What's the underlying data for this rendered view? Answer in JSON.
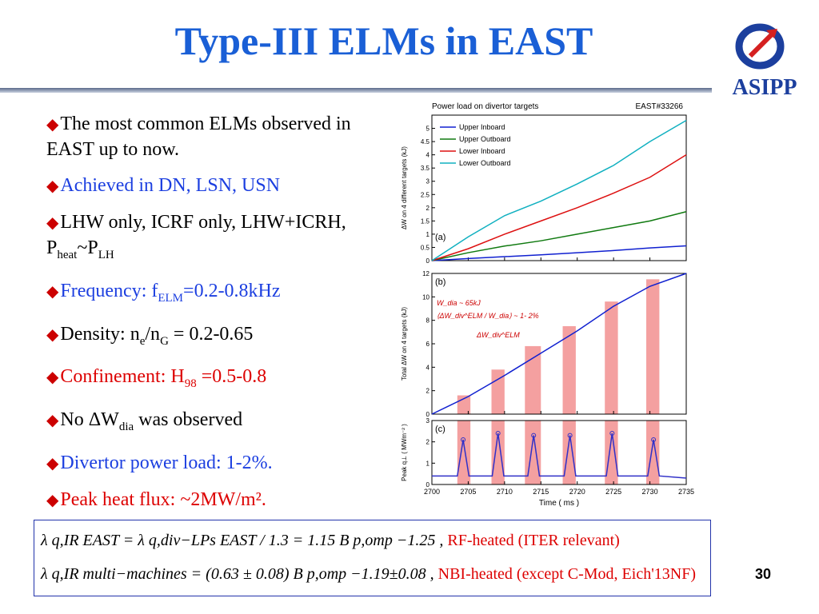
{
  "slide": {
    "title": "Type-III ELMs in EAST",
    "logo_text": "ASIPP",
    "page_number": "30"
  },
  "bullets": [
    {
      "color": "black",
      "text": "The most common ELMs observed in EAST up to now."
    },
    {
      "color": "blue",
      "text": "Achieved in DN, LSN, USN"
    },
    {
      "color": "black",
      "text": "LHW only, ICRF only, LHW+ICRH, P",
      "sub": "heat",
      "tail": "~P",
      "sub2": "LH"
    },
    {
      "color": "blue",
      "text": "Frequency:  f",
      "sub": "ELM",
      "tail": "=0.2-0.8kHz"
    },
    {
      "color": "black",
      "text": "Density: n",
      "sub": "e",
      "tail": "/n",
      "sub2": "G",
      "tail2": " = 0.2-0.65"
    },
    {
      "color": "red",
      "text": "Confinement: H",
      "sub": "98",
      "tail": " =0.5-0.8"
    },
    {
      "color": "black",
      "text": "No ΔW",
      "sub": "dia",
      "tail": " was observed"
    },
    {
      "color": "blue",
      "text": "Divertor power load: 1-2%."
    },
    {
      "color": "red",
      "text": "Peak heat flux: ~2MW/m²."
    }
  ],
  "formulas": {
    "line1_lhs": "λ q,IR EAST = λ q,div−LPs EAST / 1.3 = 1.15 B p,omp −1.25 ,",
    "line1_note": "RF-heated (ITER relevant)",
    "line2_lhs": "λ q,IR multi−machines = (0.63 ± 0.08) B p,omp −1.19±0.08 ,",
    "line2_note": "NBI-heated (except C-Mod, Eich'13NF)"
  },
  "chart_data": {
    "type": "line",
    "title": "Power load on divertor targets",
    "shot": "EAST#33266",
    "x_label": "Time   ( ms )",
    "xlim": [
      2700,
      2735
    ],
    "x_ticks": [
      2700,
      2705,
      2710,
      2715,
      2720,
      2725,
      2730,
      2735
    ],
    "panels": [
      {
        "id": "a",
        "label": "(a)",
        "ylabel": "ΔW on 4 different targets  (kJ)",
        "ylim": [
          0,
          5.5
        ],
        "y_ticks": [
          0,
          0.5,
          1,
          1.5,
          2,
          2.5,
          3,
          3.5,
          4,
          4.5,
          5
        ],
        "series": [
          {
            "name": "Upper Inboard",
            "color": "#1020d0",
            "x": [
              2700,
              2705,
              2710,
              2715,
              2720,
              2725,
              2730,
              2735
            ],
            "y": [
              0,
              0.08,
              0.15,
              0.22,
              0.3,
              0.38,
              0.48,
              0.56
            ]
          },
          {
            "name": "Upper Outboard",
            "color": "#107a10",
            "x": [
              2700,
              2705,
              2710,
              2715,
              2720,
              2725,
              2730,
              2735
            ],
            "y": [
              0,
              0.3,
              0.55,
              0.75,
              1.0,
              1.25,
              1.5,
              1.85
            ]
          },
          {
            "name": "Lower Inboard",
            "color": "#dd1010",
            "x": [
              2700,
              2705,
              2710,
              2715,
              2720,
              2725,
              2730,
              2735
            ],
            "y": [
              0,
              0.45,
              1.0,
              1.5,
              2.0,
              2.55,
              3.15,
              4.0
            ]
          },
          {
            "name": "Lower Outboard",
            "color": "#10b0c0",
            "x": [
              2700,
              2705,
              2710,
              2715,
              2720,
              2725,
              2730,
              2735
            ],
            "y": [
              0,
              0.9,
              1.7,
              2.25,
              2.9,
              3.6,
              4.5,
              5.3
            ]
          }
        ]
      },
      {
        "id": "b",
        "label": "(b)",
        "ylabel": "Total  ΔW on 4 targets    (kJ)",
        "ylim": [
          0,
          12
        ],
        "y_ticks": [
          0,
          2,
          4,
          6,
          8,
          10,
          12
        ],
        "series": [
          {
            "name": "",
            "color": "#1020d0",
            "x": [
              2700,
              2705,
              2710,
              2715,
              2720,
              2725,
              2730,
              2735
            ],
            "y": [
              0,
              1.5,
              3.3,
              5.2,
              7.1,
              9.2,
              10.9,
              12.0
            ]
          }
        ],
        "bars": [
          {
            "x0": 2703.5,
            "x1": 2705.3,
            "y": 1.6
          },
          {
            "x0": 2708.2,
            "x1": 2710.0,
            "y": 3.8
          },
          {
            "x0": 2712.8,
            "x1": 2715.0,
            "y": 5.8
          },
          {
            "x0": 2718.0,
            "x1": 2719.8,
            "y": 7.5
          },
          {
            "x0": 2723.8,
            "x1": 2725.6,
            "y": 9.6
          },
          {
            "x0": 2729.5,
            "x1": 2731.3,
            "y": 11.5
          }
        ],
        "annotations": [
          "W_dia ~ 65kJ",
          "⟨ΔW_div^ELM / W_dia⟩ ~ 1- 2%",
          "ΔW_div^ELM"
        ]
      },
      {
        "id": "c",
        "label": "(c)",
        "ylabel": "Peak q⊥ ( MWm⁻² )",
        "ylim": [
          0,
          3
        ],
        "y_ticks": [
          0,
          1,
          2,
          3
        ],
        "series": [
          {
            "name": "",
            "color": "#3030c8",
            "x": [
              2700,
              2703.5,
              2704.3,
              2705.1,
              2708.3,
              2709.1,
              2709.9,
              2713.2,
              2714.0,
              2714.8,
              2718.2,
              2719.0,
              2719.8,
              2724.0,
              2724.8,
              2725.6,
              2729.7,
              2730.5,
              2731.3,
              2735
            ],
            "y": [
              0.4,
              0.4,
              2.1,
              0.4,
              0.4,
              2.4,
              0.4,
              0.4,
              2.3,
              0.4,
              0.4,
              2.3,
              0.4,
              0.4,
              2.4,
              0.4,
              0.4,
              2.1,
              0.4,
              0.3
            ]
          }
        ],
        "bars": [
          {
            "x0": 2703.5,
            "x1": 2705.3,
            "y": 3
          },
          {
            "x0": 2708.2,
            "x1": 2710.0,
            "y": 3
          },
          {
            "x0": 2712.8,
            "x1": 2715.0,
            "y": 3
          },
          {
            "x0": 2718.0,
            "x1": 2719.8,
            "y": 3
          },
          {
            "x0": 2723.8,
            "x1": 2725.6,
            "y": 3
          },
          {
            "x0": 2729.5,
            "x1": 2731.3,
            "y": 3
          }
        ]
      }
    ]
  }
}
